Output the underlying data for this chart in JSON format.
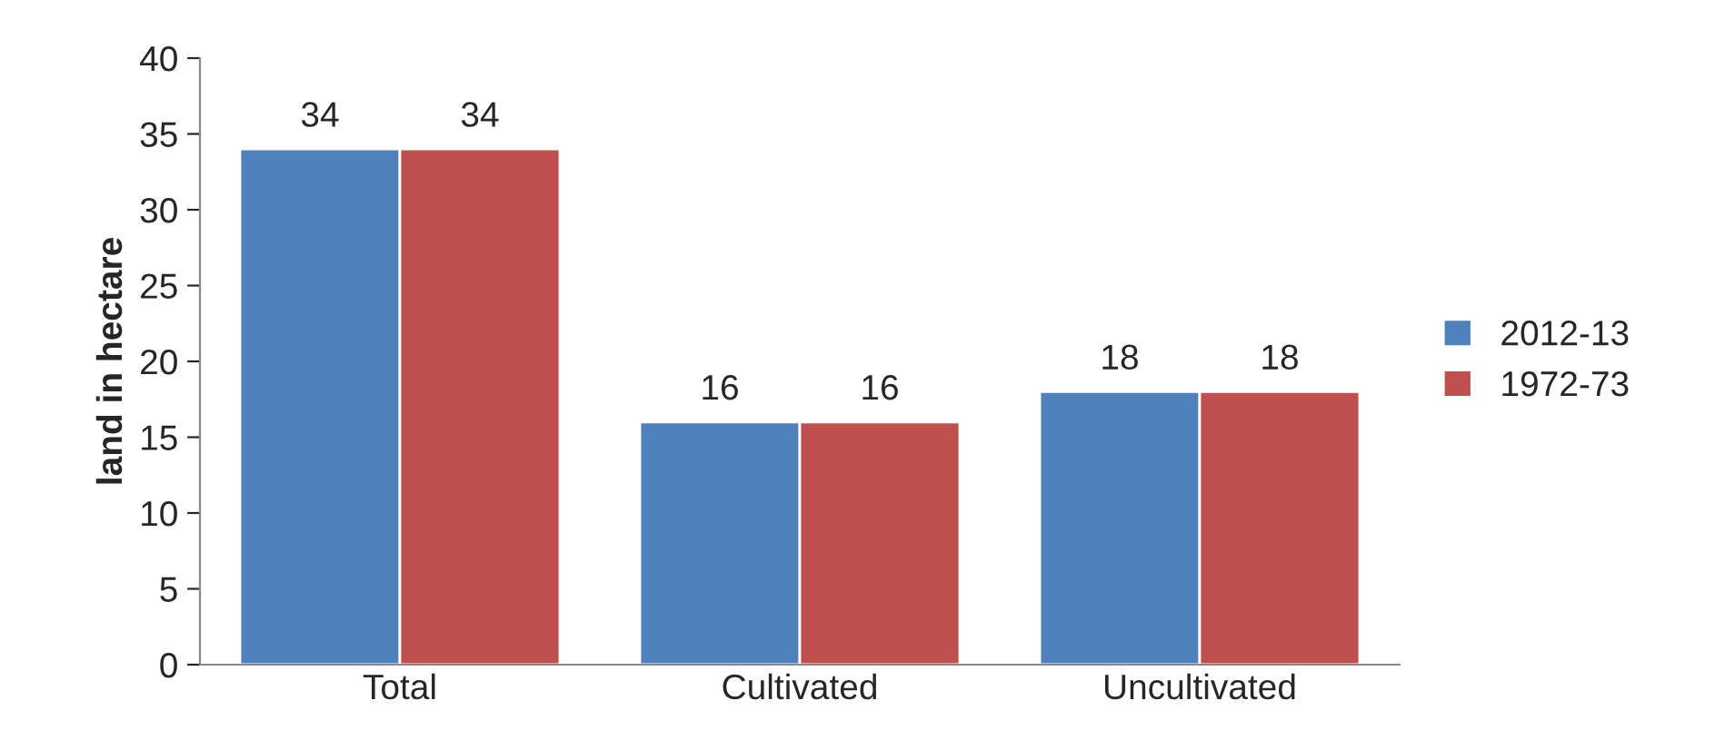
{
  "chart_data": {
    "type": "bar",
    "ylabel": "land in hectare",
    "categories": [
      "Total",
      "Cultivated",
      "Uncultivated"
    ],
    "series": [
      {
        "name": "2012-13",
        "color": "#4f81bd",
        "values": [
          34,
          16,
          18
        ]
      },
      {
        "name": "1972-73",
        "color": "#c0504d",
        "values": [
          34,
          16,
          18
        ]
      }
    ],
    "ylim": [
      0,
      40
    ],
    "yticks": [
      0,
      5,
      10,
      15,
      20,
      25,
      30,
      35,
      40
    ],
    "data_labels": true,
    "legend": "right",
    "grid": false
  }
}
